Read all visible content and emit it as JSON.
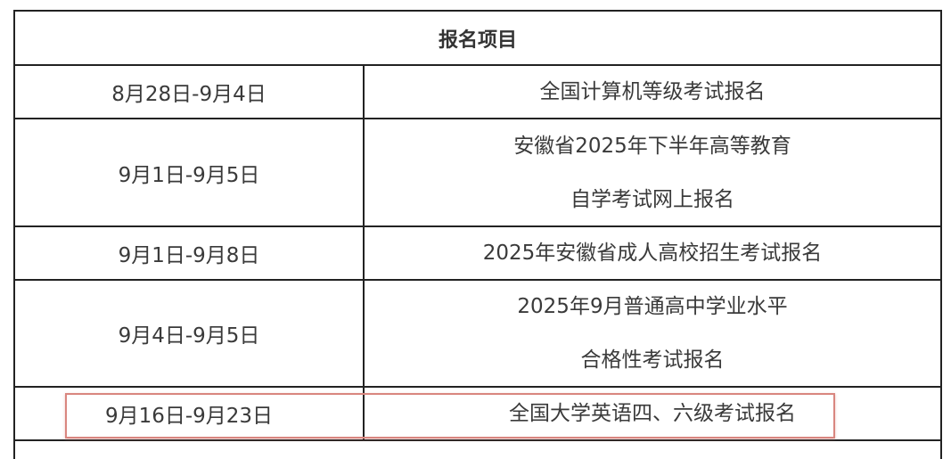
{
  "table": {
    "header": "报名项目",
    "rows": [
      {
        "date": "8月28日-9月4日",
        "item_lines": [
          "全国计算机等级考试报名"
        ]
      },
      {
        "date": "9月1日-9月5日",
        "item_lines": [
          "安徽省2025年下半年高等教育",
          "自学考试网上报名"
        ]
      },
      {
        "date": "9月1日-9月8日",
        "item_lines": [
          "2025年安徽省成人高校招生考试报名"
        ]
      },
      {
        "date": "9月4日-9月5日",
        "item_lines": [
          "2025年9月普通高中学业水平",
          "合格性考试报名"
        ]
      },
      {
        "date": "9月16日-9月23日",
        "item_lines": [
          "全国大学英语四、六级考试报名"
        ],
        "highlighted": true
      }
    ]
  },
  "colors": {
    "highlight_border": "#d9867f",
    "grid": "#222222",
    "text": "#3a3a3a"
  }
}
